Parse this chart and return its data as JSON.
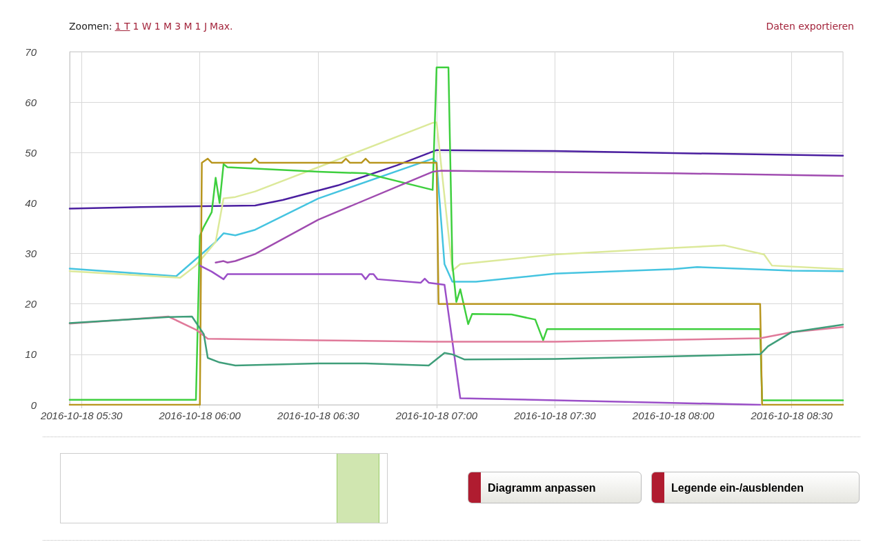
{
  "chart_data": {
    "type": "line",
    "xlim": [
      "2016-10-18T05:27",
      "2016-10-18T08:43"
    ],
    "xticks": [
      {
        "value": "2016-10-18T05:30",
        "label": "2016-10-18 05:30"
      },
      {
        "value": "2016-10-18T06:00",
        "label": "2016-10-18 06:00"
      },
      {
        "value": "2016-10-18T06:30",
        "label": "2016-10-18 06:30"
      },
      {
        "value": "2016-10-18T07:00",
        "label": "2016-10-18 07:00"
      },
      {
        "value": "2016-10-18T07:30",
        "label": "2016-10-18 07:30"
      },
      {
        "value": "2016-10-18T08:00",
        "label": "2016-10-18 08:00"
      },
      {
        "value": "2016-10-18T08:30",
        "label": "2016-10-18 08:30"
      }
    ],
    "ylim": [
      0,
      70
    ],
    "yticks": [
      0,
      10,
      20,
      30,
      40,
      50,
      60,
      70
    ],
    "grid": true,
    "marker": "none",
    "line_style": "solid",
    "annotations": [
      "Zoomen:",
      "1 T",
      "1 W",
      "1 M",
      "3 M",
      "1 J",
      "Max.",
      "Daten exportieren",
      "Diagramm anpassen",
      "Legende ein-/ausblenden"
    ],
    "series": [
      {
        "color": "#4b1fa0",
        "x": [
          "2016-10-18T05:27",
          "2016-10-18T05:45",
          "2016-10-18T06:14",
          "2016-10-18T06:21",
          "2016-10-18T06:35",
          "2016-10-18T06:50",
          "2016-10-18T07:00",
          "2016-10-18T07:30",
          "2016-10-18T08:00",
          "2016-10-18T08:43"
        ],
        "values": [
          38.9,
          39.2,
          39.5,
          40.6,
          43.5,
          47.5,
          50.5,
          50.3,
          49.9,
          49.4
        ]
      },
      {
        "color": "#45c4e0",
        "x": [
          "2016-10-18T05:27",
          "2016-10-18T05:54",
          "2016-10-18T06:04",
          "2016-10-18T06:06",
          "2016-10-18T06:09",
          "2016-10-18T06:14",
          "2016-10-18T06:30",
          "2016-10-18T06:59",
          "2016-10-18T07:00",
          "2016-10-18T07:02",
          "2016-10-18T07:04",
          "2016-10-18T07:10",
          "2016-10-18T07:30",
          "2016-10-18T08:00",
          "2016-10-18T08:06",
          "2016-10-18T08:30",
          "2016-10-18T08:43"
        ],
        "values": [
          27.0,
          25.5,
          32.3,
          34,
          33.6,
          34.7,
          40.9,
          48.8,
          48,
          27.9,
          24.4,
          24.4,
          26,
          26.9,
          27.3,
          26.6,
          26.5
        ]
      },
      {
        "color": "#dce99a",
        "x": [
          "2016-10-18T05:27",
          "2016-10-18T05:55",
          "2016-10-18T05:59",
          "2016-10-18T06:04",
          "2016-10-18T06:06",
          "2016-10-18T06:09",
          "2016-10-18T06:14",
          "2016-10-18T06:30",
          "2016-10-18T06:59",
          "2016-10-18T07:00",
          "2016-10-18T07:04",
          "2016-10-18T07:06",
          "2016-10-18T07:30",
          "2016-10-18T08:00",
          "2016-10-18T08:13",
          "2016-10-18T08:23",
          "2016-10-18T08:25",
          "2016-10-18T08:43"
        ],
        "values": [
          26.5,
          25.2,
          27.6,
          32.3,
          40.9,
          41.2,
          42.3,
          47.1,
          55.9,
          56,
          26.6,
          27.9,
          29.8,
          31.1,
          31.6,
          29.8,
          27.6,
          26.9
        ]
      },
      {
        "color": "#3ecf3e",
        "x": [
          "2016-10-18T05:27",
          "2016-10-18T05:59",
          "2016-10-18T06:00",
          "2016-10-18T06:01",
          "2016-10-18T06:03",
          "2016-10-18T06:04",
          "2016-10-18T06:05",
          "2016-10-18T06:06",
          "2016-10-18T06:07",
          "2016-10-18T06:30",
          "2016-10-18T06:42",
          "2016-10-18T06:59",
          "2016-10-18T07:00",
          "2016-10-18T07:03",
          "2016-10-18T07:04",
          "2016-10-18T07:05",
          "2016-10-18T07:06",
          "2016-10-18T07:08",
          "2016-10-18T07:09",
          "2016-10-18T07:19",
          "2016-10-18T07:25",
          "2016-10-18T07:27",
          "2016-10-18T07:28",
          "2016-10-18T08:22",
          "2016-10-18T08:22:30",
          "2016-10-18T08:43"
        ],
        "values": [
          1,
          1,
          33.5,
          35.3,
          38.2,
          45,
          40,
          47.7,
          47.1,
          46.2,
          45.9,
          42.6,
          66.9,
          66.9,
          27.9,
          20.4,
          22.9,
          16,
          18,
          17.9,
          16.9,
          12.8,
          15,
          15,
          0.9,
          0.9
        ]
      },
      {
        "color": "#b8961e",
        "x": [
          "2016-10-18T05:27",
          "2016-10-18T06:00",
          "2016-10-18T06:00:30",
          "2016-10-18T06:02",
          "2016-10-18T06:03",
          "2016-10-18T06:13",
          "2016-10-18T06:14",
          "2016-10-18T06:15",
          "2016-10-18T06:36",
          "2016-10-18T06:37",
          "2016-10-18T06:38",
          "2016-10-18T06:41",
          "2016-10-18T06:42",
          "2016-10-18T06:43",
          "2016-10-18T06:59",
          "2016-10-18T07:00",
          "2016-10-18T07:00:30",
          "2016-10-18T08:22",
          "2016-10-18T08:22:30",
          "2016-10-18T08:43"
        ],
        "values": [
          0,
          0,
          48,
          48.8,
          48,
          48,
          48.8,
          48,
          48,
          48.8,
          48,
          48,
          48.8,
          48,
          48,
          48,
          20,
          20,
          0,
          0
        ]
      },
      {
        "color": "#9b4fc8",
        "x": [
          "2016-10-18T06:00",
          "2016-10-18T06:03",
          "2016-10-18T06:06",
          "2016-10-18T06:07",
          "2016-10-18T06:41",
          "2016-10-18T06:42",
          "2016-10-18T06:43",
          "2016-10-18T06:44",
          "2016-10-18T06:45",
          "2016-10-18T06:56",
          "2016-10-18T06:57",
          "2016-10-18T06:58",
          "2016-10-18T07:00",
          "2016-10-18T07:02",
          "2016-10-18T07:06",
          "2016-10-18T08:22"
        ],
        "values": [
          27.6,
          26.4,
          24.9,
          25.9,
          25.9,
          24.9,
          25.9,
          25.9,
          24.9,
          24.2,
          25,
          24.2,
          24.0,
          23.8,
          1.3,
          0
        ]
      },
      {
        "color": "#a04cb0",
        "x": [
          "2016-10-18T06:04",
          "2016-10-18T06:06",
          "2016-10-18T06:07",
          "2016-10-18T06:09",
          "2016-10-18T06:14",
          "2016-10-18T06:30",
          "2016-10-18T06:59",
          "2016-10-18T07:01",
          "2016-10-18T08:00",
          "2016-10-18T08:43"
        ],
        "values": [
          28.2,
          28.5,
          28.2,
          28.5,
          29.9,
          36.7,
          46.2,
          46.4,
          45.9,
          45.4
        ]
      },
      {
        "color": "#e07a9a",
        "x": [
          "2016-10-18T05:27",
          "2016-10-18T05:52",
          "2016-10-18T05:59",
          "2016-10-18T06:02",
          "2016-10-18T06:30",
          "2016-10-18T06:59",
          "2016-10-18T07:30",
          "2016-10-18T08:22",
          "2016-10-18T08:30",
          "2016-10-18T08:43"
        ],
        "values": [
          16.1,
          17.5,
          14.9,
          13.1,
          12.8,
          12.5,
          12.5,
          13.2,
          14.4,
          15.4
        ]
      },
      {
        "color": "#3f9e7a",
        "x": [
          "2016-10-18T05:27",
          "2016-10-18T05:52",
          "2016-10-18T05:58",
          "2016-10-18T06:01",
          "2016-10-18T06:02",
          "2016-10-18T06:05",
          "2016-10-18T06:09",
          "2016-10-18T06:30",
          "2016-10-18T06:42",
          "2016-10-18T06:58",
          "2016-10-18T07:02",
          "2016-10-18T07:04",
          "2016-10-18T07:07",
          "2016-10-18T07:30",
          "2016-10-18T08:00",
          "2016-10-18T08:22",
          "2016-10-18T08:24",
          "2016-10-18T08:30",
          "2016-10-18T08:43"
        ],
        "values": [
          16.2,
          17.4,
          17.5,
          14,
          9.3,
          8.4,
          7.8,
          8.2,
          8.2,
          7.8,
          10.3,
          10,
          9,
          9.1,
          9.6,
          10,
          11.6,
          14.4,
          15.9
        ]
      }
    ]
  }
}
